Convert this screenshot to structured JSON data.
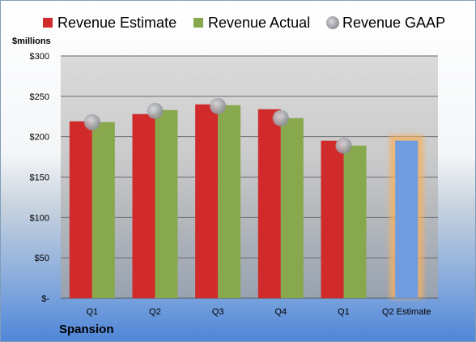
{
  "company": "Spansion",
  "chart_data": {
    "type": "bar",
    "ylabel": "$millions",
    "ylim": [
      0,
      300
    ],
    "yticks": [
      {
        "value": 0,
        "label": "$-"
      },
      {
        "value": 50,
        "label": "$50"
      },
      {
        "value": 100,
        "label": "$100"
      },
      {
        "value": 150,
        "label": "$150"
      },
      {
        "value": 200,
        "label": "$200"
      },
      {
        "value": 250,
        "label": "$250"
      },
      {
        "value": 300,
        "label": "$300"
      }
    ],
    "categories": [
      "Q1",
      "Q2",
      "Q3",
      "Q4",
      "Q1",
      "Q2 Estimate"
    ],
    "legend_position": "top",
    "grid": true,
    "series": [
      {
        "name": "Revenue Estimate",
        "kind": "bar",
        "color": "#d02a2a",
        "values": [
          219,
          228,
          240,
          234,
          195,
          null
        ]
      },
      {
        "name": "Revenue Actual",
        "kind": "bar",
        "color": "#88a84e",
        "values": [
          218,
          233,
          239,
          223,
          189,
          null
        ]
      },
      {
        "name": "Revenue GAAP",
        "kind": "marker",
        "color": "#a8aab0",
        "values": [
          218,
          232,
          238,
          223,
          189,
          null
        ]
      },
      {
        "name": "",
        "kind": "highlight-bar",
        "color": "#6f9be0",
        "glow": "#f5b060",
        "values": [
          null,
          null,
          null,
          null,
          null,
          195
        ]
      }
    ]
  }
}
